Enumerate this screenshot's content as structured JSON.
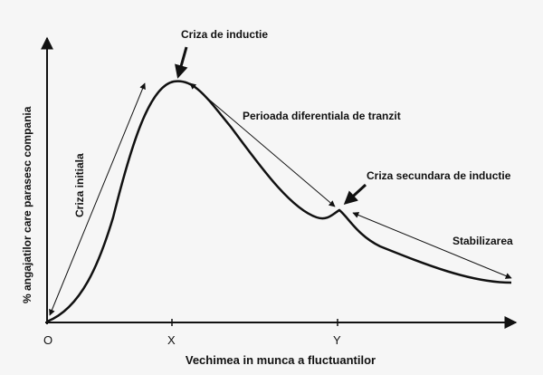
{
  "axes": {
    "y_label": "% angajatilor care parasesc compania",
    "x_label": "Vechimea in munca a fluctuantilor",
    "origin": "O",
    "x_marks": [
      "X",
      "Y"
    ]
  },
  "phases": {
    "initial": "Criza initiala",
    "induction": "Criza de inductie",
    "transit": "Perioada diferentiala de tranzit",
    "secondary": "Criza secundara de inductie",
    "stabilization": "Stabilizarea"
  }
}
